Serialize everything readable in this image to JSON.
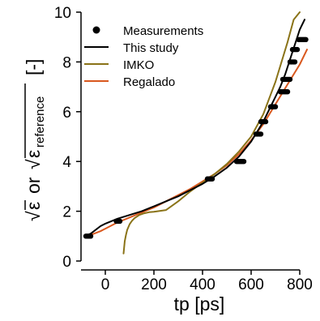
{
  "colors": {
    "measurements": "#000000",
    "this_study": "#000000",
    "imko": "#8a7318",
    "regalado": "#d9581e"
  },
  "chart_data": {
    "type": "line",
    "title": "",
    "xlabel": "tp [ps]",
    "ylabel_parts": {
      "sqrt": "√",
      "eps": "ε",
      "or": "or",
      "sub": "reference",
      "unit": "[-]"
    },
    "xlim": [
      -100,
      850
    ],
    "ylim": [
      0,
      10
    ],
    "xticks": [
      0,
      200,
      400,
      600,
      800
    ],
    "yticks": [
      0,
      2,
      4,
      6,
      8,
      10
    ],
    "grid": false,
    "legend_position": "top-left",
    "legend": [
      "Measurements",
      "This study",
      "IMKO",
      "Regalado"
    ],
    "measurements": {
      "name": "Measurements",
      "x": [
        -80,
        -75,
        -70,
        -65,
        -60,
        45,
        50,
        55,
        60,
        420,
        425,
        430,
        435,
        440,
        540,
        545,
        550,
        555,
        560,
        565,
        570,
        620,
        625,
        630,
        635,
        640,
        640,
        645,
        650,
        655,
        660,
        680,
        685,
        690,
        695,
        700,
        720,
        725,
        730,
        735,
        740,
        745,
        750,
        730,
        735,
        740,
        745,
        750,
        755,
        760,
        760,
        765,
        770,
        775,
        780,
        770,
        775,
        780,
        785,
        790,
        795,
        800,
        805,
        810,
        815,
        820,
        825
      ],
      "y": [
        1.0,
        1.0,
        1.0,
        1.0,
        1.0,
        1.6,
        1.6,
        1.6,
        1.6,
        3.3,
        3.3,
        3.3,
        3.3,
        3.3,
        4.0,
        4.0,
        4.0,
        4.0,
        4.0,
        4.0,
        4.0,
        5.1,
        5.1,
        5.1,
        5.1,
        5.1,
        5.6,
        5.6,
        5.6,
        5.6,
        5.6,
        6.2,
        6.2,
        6.2,
        6.2,
        6.2,
        6.8,
        6.8,
        6.8,
        6.8,
        6.8,
        6.8,
        6.8,
        7.3,
        7.3,
        7.3,
        7.3,
        7.3,
        7.3,
        7.3,
        8.0,
        8.0,
        8.0,
        8.0,
        8.0,
        8.5,
        8.5,
        8.5,
        8.5,
        8.5,
        8.9,
        8.9,
        8.9,
        8.9,
        8.9,
        8.9,
        8.9
      ]
    },
    "series": [
      {
        "name": "This study",
        "x": [
          -85,
          -60,
          -20,
          0,
          50,
          100,
          150,
          200,
          250,
          300,
          350,
          400,
          450,
          500,
          550,
          600,
          650,
          700,
          720,
          740,
          760,
          780,
          800,
          820
        ],
        "y": [
          1.0,
          1.1,
          1.4,
          1.5,
          1.7,
          1.85,
          2.0,
          2.2,
          2.4,
          2.6,
          2.85,
          3.1,
          3.4,
          3.75,
          4.2,
          4.8,
          5.6,
          6.6,
          7.0,
          7.5,
          8.1,
          8.7,
          9.3,
          9.7
        ]
      },
      {
        "name": "IMKO",
        "x": [
          75,
          80,
          85,
          90,
          100,
          110,
          120,
          140,
          160,
          180,
          200,
          250,
          300,
          350,
          400,
          450,
          500,
          550,
          600,
          650,
          700,
          750,
          775,
          800
        ],
        "y": [
          0.3,
          0.8,
          1.05,
          1.25,
          1.48,
          1.62,
          1.72,
          1.85,
          1.92,
          1.96,
          1.98,
          2.05,
          2.4,
          2.8,
          3.15,
          3.5,
          3.9,
          4.4,
          5.0,
          5.9,
          7.2,
          8.8,
          9.7,
          10.0
        ]
      },
      {
        "name": "Regalado",
        "x": [
          -85,
          -60,
          -20,
          0,
          50,
          100,
          150,
          200,
          250,
          300,
          350,
          400,
          450,
          500,
          550,
          600,
          650,
          700,
          750,
          800,
          830
        ],
        "y": [
          1.0,
          1.05,
          1.2,
          1.3,
          1.55,
          1.75,
          1.95,
          2.15,
          2.4,
          2.65,
          2.9,
          3.2,
          3.5,
          3.85,
          4.3,
          4.85,
          5.5,
          6.3,
          7.1,
          7.9,
          8.5
        ]
      }
    ]
  }
}
